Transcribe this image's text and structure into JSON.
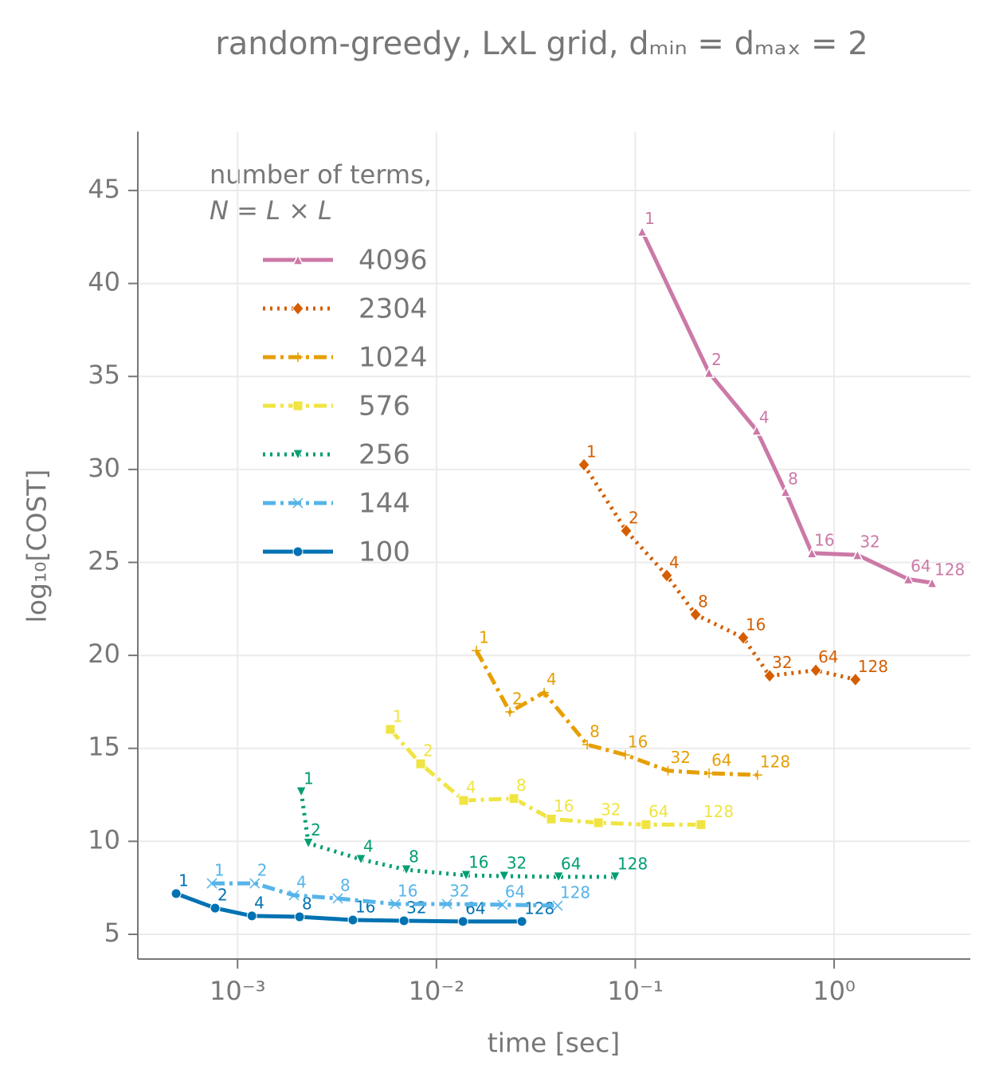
{
  "chart_data": {
    "type": "line",
    "title": "random-greedy, LxL grid, dₘᵢₙ = dₘₐₓ = 2",
    "x_label": "time [sec]",
    "y_label": "log₁₀[COST]",
    "legend_title": "number of terms,",
    "legend_subtitle": "N = L × L",
    "legend_position": "upper left",
    "grid": true,
    "xscale": "log",
    "xlim": [
      0.000315,
      4.84
    ],
    "ylim": [
      3.67,
      48.17
    ],
    "xticks": [
      {
        "value": 0.001,
        "label": "10⁻³"
      },
      {
        "value": 0.01,
        "label": "10⁻²"
      },
      {
        "value": 0.1,
        "label": "10⁻¹"
      },
      {
        "value": 1,
        "label": "10⁰"
      }
    ],
    "yticks": [
      5,
      10,
      15,
      20,
      25,
      30,
      35,
      40,
      45
    ],
    "point_labels": [
      "1",
      "2",
      "4",
      "8",
      "16",
      "32",
      "64",
      "128"
    ],
    "series": [
      {
        "name": "4096",
        "color": "#cc79a7",
        "linestyle": "solid",
        "marker": "triangle-up",
        "x": [
          0.1083,
          0.235,
          0.408,
          0.57,
          0.773,
          1.31,
          2.36,
          3.11
        ],
        "values": [
          42.8,
          35.2,
          32.1,
          28.8,
          25.5,
          25.4,
          24.1,
          23.9
        ]
      },
      {
        "name": "2304",
        "color": "#d55e00",
        "linestyle": "dotted",
        "marker": "diamond",
        "x": [
          0.0552,
          0.09,
          0.144,
          0.201,
          0.349,
          0.474,
          0.809,
          1.28
        ],
        "values": [
          30.25,
          26.7,
          24.3,
          22.2,
          20.95,
          18.9,
          19.2,
          18.7
        ]
      },
      {
        "name": "1024",
        "color": "#e69f00",
        "linestyle": "dashdot",
        "marker": "plus",
        "x": [
          0.0159,
          0.0234,
          0.0348,
          0.0573,
          0.0891,
          0.146,
          0.235,
          0.412
        ],
        "values": [
          20.26,
          16.96,
          18.0,
          15.2,
          14.65,
          13.8,
          13.66,
          13.57
        ]
      },
      {
        "name": "576",
        "color": "#f0e442",
        "linestyle": "dashdot",
        "marker": "square",
        "x": [
          0.00586,
          0.00833,
          0.0137,
          0.0245,
          0.0378,
          0.0652,
          0.1133,
          0.214
        ],
        "values": [
          16.02,
          14.17,
          12.2,
          12.3,
          11.2,
          11.0,
          10.9,
          10.9
        ]
      },
      {
        "name": "256",
        "color": "#009e73",
        "linestyle": "dotted",
        "marker": "triangle-down",
        "x": [
          0.00209,
          0.00227,
          0.00417,
          0.00706,
          0.0141,
          0.0219,
          0.0411,
          0.0791
        ],
        "values": [
          12.67,
          9.9,
          9.03,
          8.47,
          8.17,
          8.13,
          8.09,
          8.09
        ]
      },
      {
        "name": "144",
        "color": "#56b4e9",
        "linestyle": "dashdot",
        "marker": "x",
        "x": [
          0.000743,
          0.00122,
          0.00192,
          0.00319,
          0.0062,
          0.0113,
          0.0215,
          0.0407
        ],
        "values": [
          7.74,
          7.74,
          7.1,
          6.93,
          6.63,
          6.63,
          6.59,
          6.54
        ]
      },
      {
        "name": "100",
        "color": "#0072b2",
        "linestyle": "solid",
        "marker": "circle",
        "x": [
          0.000491,
          0.000771,
          0.00118,
          0.00205,
          0.0038,
          0.00687,
          0.0136,
          0.0269
        ],
        "values": [
          7.19,
          6.41,
          5.99,
          5.94,
          5.77,
          5.73,
          5.69,
          5.69
        ]
      }
    ]
  }
}
